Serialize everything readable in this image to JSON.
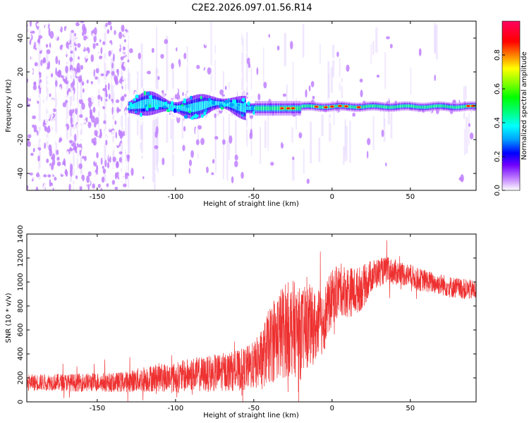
{
  "title": "C2E2.2026.097.01.56.R14",
  "chart_data": [
    {
      "type": "heatmap",
      "xlabel": "Height of straight line (km)",
      "ylabel": "Frequency (Hz)",
      "xlim": [
        -195,
        92
      ],
      "ylim": [
        -50,
        50
      ],
      "xticks": [
        -150,
        -100,
        -50,
        0,
        50
      ],
      "yticks": [
        -40,
        -20,
        0,
        20,
        40
      ],
      "colorbar": {
        "label": "Normalized spectral amplitude",
        "range": [
          0,
          1
        ],
        "ticks": [
          "0.0",
          "0.2",
          "0.4",
          "0.6",
          "0.8"
        ],
        "colors": [
          "#ffffff",
          "#c080ff",
          "#7000ff",
          "#0000ff",
          "#00a0ff",
          "#00ffff",
          "#00ff80",
          "#00ff00",
          "#80ff00",
          "#ffff00",
          "#ff8000",
          "#ff0000",
          "#ff0060"
        ]
      },
      "regions": [
        {
          "x_range": [
            -195,
            -130
          ],
          "freq_range": [
            -50,
            50
          ],
          "amplitude": 0.1,
          "pattern": "scattered noise"
        },
        {
          "x_range": [
            -130,
            -50
          ],
          "freq_range": [
            -6,
            8
          ],
          "amplitude": 0.3,
          "pattern": "broad band"
        },
        {
          "x_range": [
            -50,
            92
          ],
          "freq_range": [
            -3,
            2
          ],
          "amplitude": 0.7,
          "pattern": "narrow band"
        }
      ]
    },
    {
      "type": "line",
      "xlabel": "Height of straight line (km)",
      "ylabel": "SNR (10 * v/v)",
      "xlim": [
        -195,
        92
      ],
      "ylim": [
        0,
        1400
      ],
      "xticks": [
        -150,
        -100,
        -50,
        0,
        50
      ],
      "yticks": [
        0,
        200,
        400,
        600,
        800,
        1000,
        1200,
        1400
      ],
      "color": "#ee3030",
      "series": [
        {
          "x": [
            -195,
            -180,
            -165,
            -150,
            -140,
            -130,
            -120,
            -110,
            -100,
            -90,
            -80,
            -70,
            -60,
            -50,
            -45,
            -40,
            -35,
            -30,
            -25,
            -20,
            -15,
            -10,
            -5,
            0,
            5,
            10,
            15,
            20,
            25,
            30,
            35,
            40,
            45,
            50,
            55,
            60,
            65,
            70,
            75,
            80,
            85,
            92
          ],
          "y": [
            160,
            165,
            160,
            165,
            160,
            170,
            190,
            205,
            200,
            230,
            230,
            250,
            260,
            300,
            360,
            470,
            550,
            600,
            620,
            560,
            640,
            620,
            700,
            870,
            940,
            920,
            920,
            960,
            1050,
            1080,
            1100,
            1080,
            1070,
            1050,
            1020,
            1010,
            990,
            980,
            960,
            950,
            940,
            930
          ],
          "spread": [
            70,
            70,
            75,
            80,
            80,
            90,
            110,
            120,
            130,
            140,
            150,
            160,
            170,
            200,
            250,
            320,
            380,
            400,
            400,
            380,
            350,
            300,
            280,
            230,
            220,
            220,
            200,
            180,
            140,
            120,
            110,
            110,
            100,
            100,
            95,
            95,
            90,
            90,
            90,
            90,
            85,
            85
          ]
        }
      ]
    }
  ]
}
